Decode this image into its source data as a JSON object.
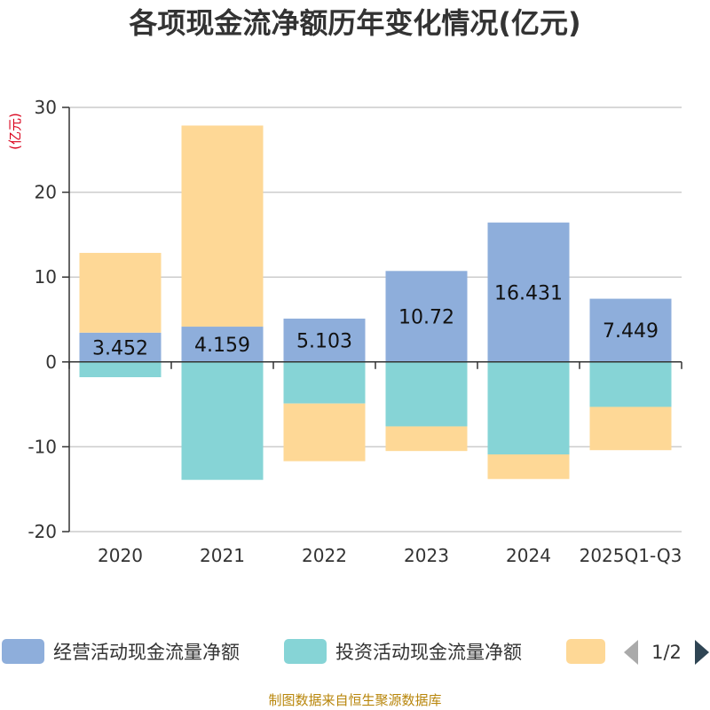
{
  "chart_data": {
    "type": "bar",
    "stacked": true,
    "title": "各项现金流净额历年变化情况(亿元)",
    "ylabel": "(亿元)",
    "ylim": [
      -20,
      30
    ],
    "yticks": [
      -20,
      -10,
      0,
      10,
      20,
      30
    ],
    "categories": [
      "2020",
      "2021",
      "2022",
      "2023",
      "2024",
      "2025Q1-Q3"
    ],
    "series": [
      {
        "name": "经营活动现金流量净额",
        "color": "#8eaedb",
        "values": [
          3.452,
          4.159,
          5.103,
          10.72,
          16.431,
          7.449
        ],
        "labels": [
          "3.452",
          "4.159",
          "5.103",
          "10.72",
          "16.431",
          "7.449"
        ]
      },
      {
        "name": "投资活动现金流量净额",
        "color": "#86d4d6",
        "values": [
          -1.8,
          -13.9,
          -4.9,
          -7.6,
          -10.9,
          -5.3
        ]
      },
      {
        "name": "",
        "color": "#fed896",
        "values": [
          9.4,
          23.7,
          -6.8,
          -2.9,
          -2.9,
          -5.1
        ]
      }
    ],
    "legend": {
      "position": "bottom",
      "page": "1/2"
    },
    "source": "制图数据来自恒生聚源数据库"
  }
}
